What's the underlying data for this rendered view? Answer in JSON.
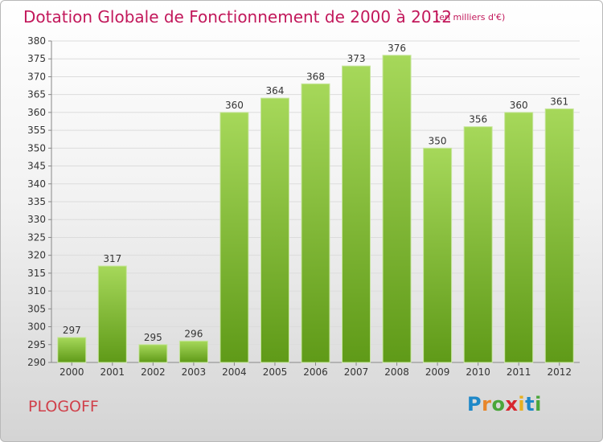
{
  "title": "Dotation Globale de Fonctionnement de 2000 à 2012",
  "unit_note": "(en milliers d'€)",
  "town": "PLOGOFF",
  "brand": {
    "text": "Proxiti",
    "letter_colors": [
      "#1e88c8",
      "#e8862a",
      "#4aa63a",
      "#d7262e",
      "#e8b020",
      "#1e88c8",
      "#4aa63a"
    ]
  },
  "colors": {
    "title": "#c2185b",
    "town": "#d0404a",
    "bar_top": "#a6d85a",
    "bar_bottom": "#5f9a18"
  },
  "chart_data": {
    "type": "bar",
    "categories": [
      "2000",
      "2001",
      "2002",
      "2003",
      "2004",
      "2005",
      "2006",
      "2007",
      "2008",
      "2009",
      "2010",
      "2011",
      "2012"
    ],
    "values": [
      297,
      317,
      295,
      296,
      360,
      364,
      368,
      373,
      376,
      350,
      356,
      360,
      361
    ],
    "ylim": [
      290,
      380
    ],
    "ytick_step": 5,
    "grid": true,
    "title": "Dotation Globale de Fonctionnement de 2000 à 2012",
    "xlabel": "",
    "ylabel": ""
  }
}
